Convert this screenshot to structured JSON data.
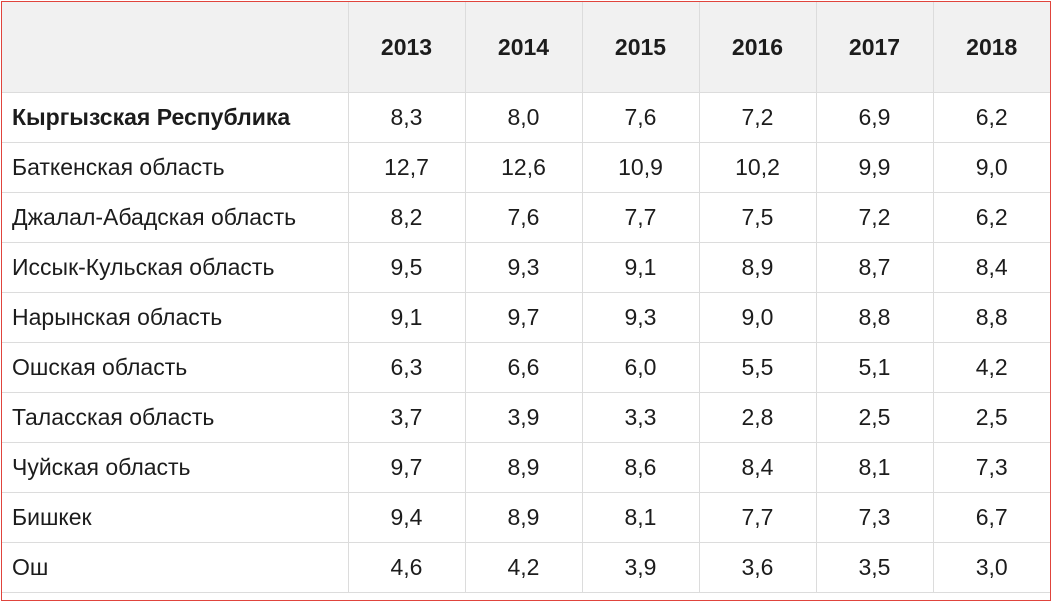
{
  "table": {
    "corner_label": "",
    "years": [
      "2013",
      "2014",
      "2015",
      "2016",
      "2017",
      "2018"
    ],
    "rows": [
      {
        "label": "Кыргызская Республика",
        "values": [
          "8,3",
          "8,0",
          "7,6",
          "7,2",
          "6,9",
          "6,2"
        ]
      },
      {
        "label": "Баткенская область",
        "values": [
          "12,7",
          "12,6",
          "10,9",
          "10,2",
          "9,9",
          "9,0"
        ]
      },
      {
        "label": "Джалал-Абадская область",
        "values": [
          "8,2",
          "7,6",
          "7,7",
          "7,5",
          "7,2",
          "6,2"
        ]
      },
      {
        "label": "Иссык-Кульская область",
        "values": [
          "9,5",
          "9,3",
          "9,1",
          "8,9",
          "8,7",
          "8,4"
        ]
      },
      {
        "label": "Нарынская область",
        "values": [
          "9,1",
          "9,7",
          "9,3",
          "9,0",
          "8,8",
          "8,8"
        ]
      },
      {
        "label": "Ошская область",
        "values": [
          "6,3",
          "6,6",
          "6,0",
          "5,5",
          "5,1",
          "4,2"
        ]
      },
      {
        "label": "Таласская область",
        "values": [
          "3,7",
          "3,9",
          "3,3",
          "2,8",
          "2,5",
          "2,5"
        ]
      },
      {
        "label": "Чуйская область",
        "values": [
          "9,7",
          "8,9",
          "8,6",
          "8,4",
          "8,1",
          "7,3"
        ]
      },
      {
        "label": "Бишкек",
        "values": [
          "9,4",
          "8,9",
          "8,1",
          "7,7",
          "7,3",
          "6,7"
        ]
      },
      {
        "label": "Ош",
        "values": [
          "4,6",
          "4,2",
          "3,9",
          "3,6",
          "3,5",
          "3,0"
        ]
      }
    ]
  },
  "colors": {
    "frame_border": "#e0443c",
    "header_background": "#f1f1f1",
    "grid_line": "#dcdcdc",
    "text": "#1c1c1c"
  }
}
